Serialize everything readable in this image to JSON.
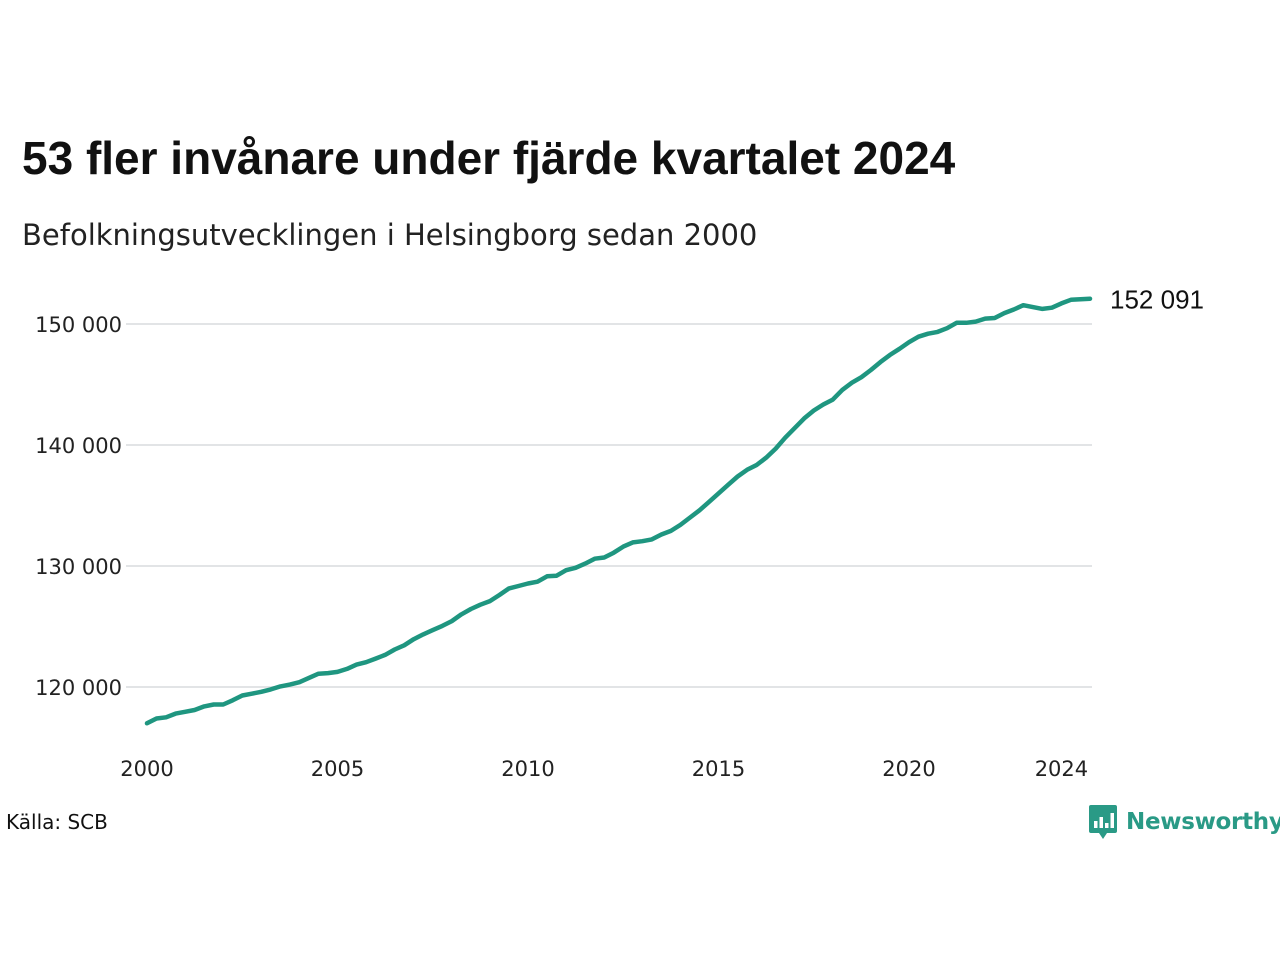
{
  "title": "53 fler invånare under fjärde kvartalet 2024",
  "subtitle": "Befolkningsutvecklingen i Helsingborg sedan 2000",
  "source": "Källa: SCB",
  "brand": "Newsworthy",
  "colors": {
    "line": "#1f9680",
    "grid": "#e2e4e6",
    "brand": "#2a9a86"
  },
  "chart_data": {
    "type": "line",
    "title": "53 fler invånare under fjärde kvartalet 2024",
    "subtitle": "Befolkningsutvecklingen i Helsingborg sedan 2000",
    "xlabel": "",
    "ylabel": "",
    "x_ticks": [
      2000,
      2005,
      2010,
      2015,
      2020,
      2024
    ],
    "y_ticks": [
      120000,
      130000,
      140000,
      150000
    ],
    "y_tick_labels": [
      "120 000",
      "130 000",
      "140 000",
      "150 000"
    ],
    "grid": "horizontal",
    "legend": "none",
    "end_label": "152 091",
    "series": [
      {
        "x": [
          2000.0,
          2000.25,
          2000.5,
          2000.75,
          2001.0,
          2001.25,
          2001.5,
          2001.75,
          2002.0,
          2002.25,
          2002.5,
          2002.75,
          2003.0,
          2003.25,
          2003.5,
          2003.75,
          2004.0,
          2004.25,
          2004.5,
          2004.75,
          2005.0,
          2005.25,
          2005.5,
          2005.75,
          2006.0,
          2006.25,
          2006.5,
          2006.75,
          2007.0,
          2007.25,
          2007.5,
          2007.75,
          2008.0,
          2008.25,
          2008.5,
          2008.75,
          2009.0,
          2009.25,
          2009.5,
          2009.75,
          2010.0,
          2010.25,
          2010.5,
          2010.75,
          2011.0,
          2011.25,
          2011.5,
          2011.75,
          2012.0,
          2012.25,
          2012.5,
          2012.75,
          2013.0,
          2013.25,
          2013.5,
          2013.75,
          2014.0,
          2014.25,
          2014.5,
          2014.75,
          2015.0,
          2015.25,
          2015.5,
          2015.75,
          2016.0,
          2016.25,
          2016.5,
          2016.75,
          2017.0,
          2017.25,
          2017.5,
          2017.75,
          2018.0,
          2018.25,
          2018.5,
          2018.75,
          2019.0,
          2019.25,
          2019.5,
          2019.75,
          2020.0,
          2020.25,
          2020.5,
          2020.75,
          2021.0,
          2021.25,
          2021.5,
          2021.75,
          2022.0,
          2022.25,
          2022.5,
          2022.75,
          2023.0,
          2023.25,
          2023.5,
          2023.75,
          2024.0,
          2024.25,
          2024.5,
          2024.75
        ],
        "values": [
          117000,
          117400,
          117500,
          117800,
          117950,
          118100,
          118400,
          118550,
          118550,
          118900,
          119300,
          119450,
          119600,
          119800,
          120050,
          120200,
          120400,
          120750,
          121100,
          121150,
          121250,
          121500,
          121850,
          122050,
          122350,
          122650,
          123100,
          123450,
          123950,
          124350,
          124700,
          125050,
          125450,
          126000,
          126450,
          126800,
          127100,
          127600,
          128150,
          128350,
          128550,
          128700,
          129150,
          129200,
          129650,
          129850,
          130200,
          130600,
          130700,
          131100,
          131600,
          131950,
          132050,
          132200,
          132600,
          132900,
          133400,
          134000,
          134600,
          135300,
          136000,
          136700,
          137400,
          137950,
          138350,
          138950,
          139700,
          140600,
          141400,
          142200,
          142850,
          143350,
          143750,
          144550,
          145150,
          145600,
          146200,
          146850,
          147450,
          147950,
          148500,
          148950,
          149200,
          149350,
          149650,
          150100,
          150100,
          150200,
          150450,
          150500,
          150900,
          151200,
          151550,
          151400,
          151250,
          151350,
          151700,
          152000,
          152038,
          152091
        ]
      }
    ]
  }
}
